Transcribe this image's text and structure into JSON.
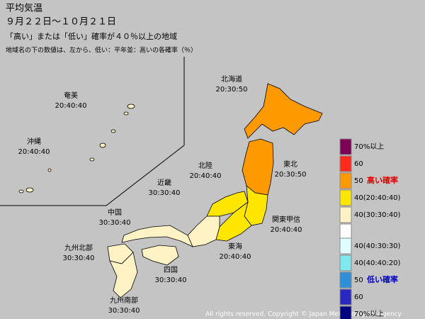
{
  "header": {
    "title": "平均気温",
    "period": "９月２２日～１０月２１日",
    "subtitle": "「高い」または「低い」確率が４０％以上の地域",
    "note": "地域名の下の数値は、左から、低い：平年並：高いの各確率（％）"
  },
  "regions": [
    {
      "name": "北海道",
      "probs": "20:30:50",
      "color": "#ff9900"
    },
    {
      "name": "東北",
      "probs": "20:30:50",
      "color": "#ff9900"
    },
    {
      "name": "北陸",
      "probs": "20:40:40",
      "color": "#ffe600"
    },
    {
      "name": "関東甲信",
      "probs": "20:40:40",
      "color": "#ffe600"
    },
    {
      "name": "東海",
      "probs": "20:40:40",
      "color": "#ffe600"
    },
    {
      "name": "近畿",
      "probs": "30:30:40",
      "color": "#fff2c4"
    },
    {
      "name": "中国",
      "probs": "30:30:40",
      "color": "#fff2c4"
    },
    {
      "name": "四国",
      "probs": "30:30:40",
      "color": "#fff2c4"
    },
    {
      "name": "九州北部",
      "probs": "30:30:40",
      "color": "#fff2c4"
    },
    {
      "name": "九州南部",
      "probs": "30:30:40",
      "color": "#fff2c4"
    },
    {
      "name": "奄美",
      "probs": "20:40:40",
      "color": "#fff2c4"
    },
    {
      "name": "沖縄",
      "probs": "20:40:40",
      "color": "#fff2c4"
    }
  ],
  "legend": {
    "high_label": "高い確率",
    "low_label": "低い確率",
    "items": [
      "70%以上",
      "60",
      "50",
      "40(20:40:40)",
      "40(30:30:40)",
      "40(40:30:30)",
      "40(40:40:20)",
      "50",
      "60",
      "70%以上"
    ]
  },
  "footer": "All rights reserved. Copyright © Japan Meteorological Agency"
}
